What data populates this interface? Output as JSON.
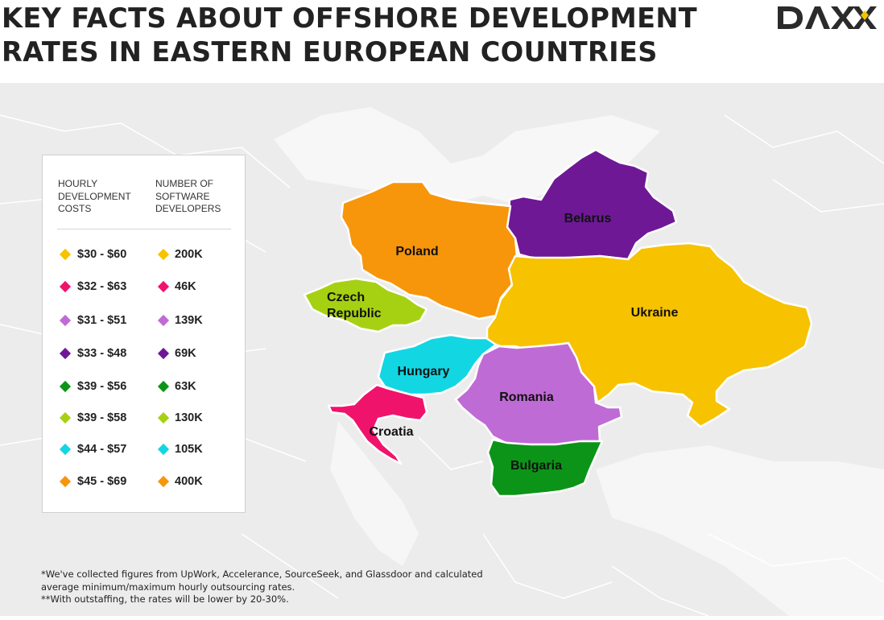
{
  "title": {
    "line1": "KEY FACTS ABOUT OFFSHORE DEVELOPMENT",
    "line2": "RATES IN EASTERN EUROPEAN COUNTRIES"
  },
  "logo": {
    "text": "DAXX",
    "accent_color": "#f4c400"
  },
  "legend": {
    "cost_header": [
      "HOURLY",
      "DEVELOPMENT",
      "COSTS"
    ],
    "devs_header": [
      "NUMBER OF",
      "SOFTWARE",
      "DEVELOPERS"
    ],
    "rows": [
      {
        "color": "#f7c200",
        "cost": "$30 - $60",
        "devs": "200K"
      },
      {
        "color": "#f0136c",
        "cost": "$32 - $63",
        "devs": "46K"
      },
      {
        "color": "#bf6bd6",
        "cost": "$31 - $51",
        "devs": "139K"
      },
      {
        "color": "#6e1896",
        "cost": "$33 - $48",
        "devs": "69K"
      },
      {
        "color": "#0c9418",
        "cost": "$39 - $56",
        "devs": "63K"
      },
      {
        "color": "#a6d113",
        "cost": "$39 - $58",
        "devs": "130K"
      },
      {
        "color": "#13d6e3",
        "cost": "$44 - $57",
        "devs": "105K"
      },
      {
        "color": "#f7960b",
        "cost": "$45 - $69",
        "devs": "400K"
      }
    ]
  },
  "countries": {
    "poland": {
      "name": "Poland",
      "color": "#f7960b"
    },
    "belarus": {
      "name": "Belarus",
      "color": "#6e1896"
    },
    "czech_line1": "Czech",
    "czech_line2": "Republic",
    "czech_color": "#a6d113",
    "ukraine": {
      "name": "Ukraine",
      "color": "#f7c200"
    },
    "hungary": {
      "name": "Hungary",
      "color": "#13d6e3"
    },
    "romania": {
      "name": "Romania",
      "color": "#bf6bd6"
    },
    "croatia": {
      "name": "Croatia",
      "color": "#f0136c"
    },
    "bulgaria": {
      "name": "Bulgaria",
      "color": "#0c9418"
    }
  },
  "footnote": {
    "line1": "*We've collected figures from UpWork, Accelerance, SourceSeek, and Glassdoor and calculated",
    "line2": "average minimum/maximum hourly outsourcing rates.",
    "line3": "**With outstaffing, the rates will be lower by 20-30%."
  }
}
